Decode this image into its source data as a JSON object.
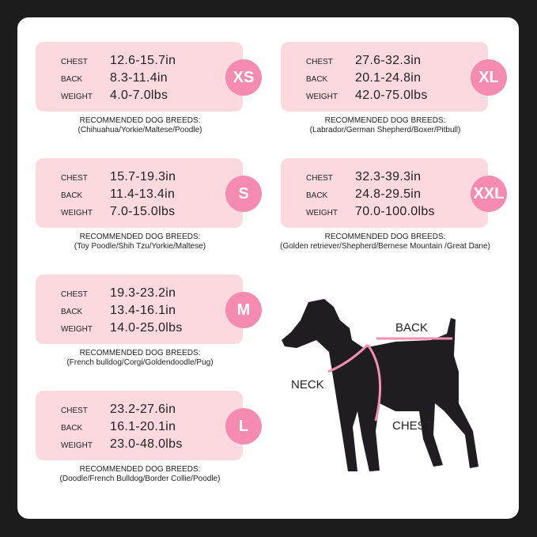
{
  "heading": "RECOMMENDED DOG BREEDS:",
  "labels": {
    "chest": "CHEST",
    "back": "BACK",
    "weight": "WEIGHT"
  },
  "sizes": [
    {
      "size": "XS",
      "chest": "12.6-15.7in",
      "back": "8.3-11.4in",
      "weight": "4.0-7.0lbs",
      "breeds": "(Chihuahua/Yorkie/Maltese/Poodle)"
    },
    {
      "size": "S",
      "chest": "15.7-19.3in",
      "back": "11.4-13.4in",
      "weight": "7.0-15.0lbs",
      "breeds": "(Toy Poodle/Shih Tzu/Yorkie/Maltese)"
    },
    {
      "size": "M",
      "chest": "19.3-23.2in",
      "back": "13.4-16.1in",
      "weight": "14.0-25.0lbs",
      "breeds": "(French bulldog/Corgi/Goldendoodle/Pug)"
    },
    {
      "size": "L",
      "chest": "23.2-27.6in",
      "back": "16.1-20.1in",
      "weight": "23.0-48.0lbs",
      "breeds": "(Doodle/French Bulldog/Border Collie/Poodle)"
    },
    {
      "size": "XL",
      "chest": "27.6-32.3in",
      "back": "20.1-24.8in",
      "weight": "42.0-75.0lbs",
      "breeds": "(Labrador/German Shepherd/Boxer/Pitbull)"
    },
    {
      "size": "XXL",
      "chest": "32.3-39.3in",
      "back": "24.8-29.5in",
      "weight": "70.0-100.0lbs",
      "breeds": "(Golden retriever/Shepherd/Bernese Mountain /Great Dane)"
    }
  ],
  "diagram": {
    "back": "BACK",
    "neck": "NECK",
    "chest": "CHEST"
  },
  "colors": {
    "card": "#fcd9df",
    "badge": "#f58bb0",
    "harness": "#f48fb1"
  }
}
